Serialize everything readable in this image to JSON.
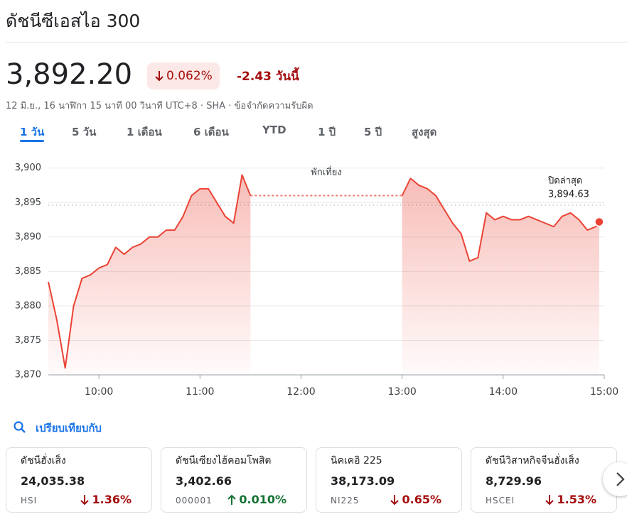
{
  "header": {
    "title": "ดัชนีซีเอสไอ 300",
    "price": "3,892.20",
    "change_percent": "0.062%",
    "change": "-2.43 วันนี้",
    "direction": "down",
    "timestamp": "12 มิ.ย., 16 นาฬิกา 15 นาที 00 วินาที UTC+8 · SHA · ข้อจำกัดความรับผิด"
  },
  "tabs": [
    "1 วัน",
    "5 วัน",
    "1 เดือน",
    "6 เดือน",
    "YTD",
    "1 ปี",
    "5 ปี",
    "สูงสุด"
  ],
  "active_tab": 0,
  "chart_data": {
    "type": "line",
    "color": "#ea4335",
    "grid": true,
    "x": [
      570,
      575,
      580,
      585,
      590,
      595,
      600,
      605,
      610,
      615,
      620,
      625,
      630,
      635,
      640,
      645,
      650,
      655,
      660,
      665,
      670,
      675,
      680,
      685,
      690,
      735,
      780,
      785,
      790,
      795,
      800,
      805,
      810,
      815,
      820,
      825,
      830,
      835,
      840,
      845,
      850,
      855,
      860,
      865,
      870,
      875,
      880,
      885,
      890,
      895,
      897
    ],
    "values": [
      3883.5,
      3878,
      3871,
      3880,
      3884,
      3884.5,
      3885.5,
      3886,
      3888.5,
      3887.5,
      3888.5,
      3889,
      3890,
      3890,
      3891,
      3891,
      3893,
      3896,
      3897,
      3897,
      3895,
      3893,
      3892,
      3899,
      3896,
      null,
      3896,
      3898.5,
      3897.5,
      3897,
      3896,
      3894,
      3892,
      3890.5,
      3886.5,
      3887,
      3893.5,
      3892.5,
      3893,
      3892.5,
      3892.5,
      3893,
      3892.5,
      3892,
      3891.5,
      3893,
      3893.5,
      3892.5,
      3891,
      3891.5,
      3892.2
    ],
    "xlim": [
      570,
      900
    ],
    "xticks": [
      {
        "value": 600,
        "label": "10:00"
      },
      {
        "value": 660,
        "label": "11:00"
      },
      {
        "value": 720,
        "label": "12:00"
      },
      {
        "value": 780,
        "label": "13:00"
      },
      {
        "value": 840,
        "label": "14:00"
      },
      {
        "value": 900,
        "label": "15:00"
      }
    ],
    "ylim": [
      3870,
      3901
    ],
    "yticks": [
      {
        "value": 3870,
        "label": "3,870"
      },
      {
        "value": 3875,
        "label": "3,875"
      },
      {
        "value": 3880,
        "label": "3,880"
      },
      {
        "value": 3885,
        "label": "3,885"
      },
      {
        "value": 3890,
        "label": "3,890"
      },
      {
        "value": 3895,
        "label": "3,895"
      },
      {
        "value": 3900,
        "label": "3,900"
      }
    ],
    "previous_close": {
      "value": 3894.63,
      "label": "3,894.63"
    },
    "previous_close_title": "ปิดล่าสุด",
    "annotation": "พักเที่ยง"
  },
  "compare": {
    "title": "เปรียบเทียบกับ",
    "cards": [
      {
        "name": "ดัชนีฮั่งเส็ง",
        "value": "24,035.38",
        "symbol": "HSI",
        "change": "1.36%",
        "direction": "down"
      },
      {
        "name": "ดัชนีเซียงไฮ้คอมโพสิต",
        "value": "3,402.66",
        "symbol": "000001",
        "change": "0.010%",
        "direction": "up"
      },
      {
        "name": "นิคเคอิ 225",
        "value": "38,173.09",
        "symbol": "NI225",
        "change": "0.65%",
        "direction": "down"
      },
      {
        "name": "ดัชนีวิสาหกิจจีนฮั่งเส็ง",
        "value": "8,729.96",
        "symbol": "HSCEI",
        "change": "1.53%",
        "direction": "down"
      }
    ]
  }
}
